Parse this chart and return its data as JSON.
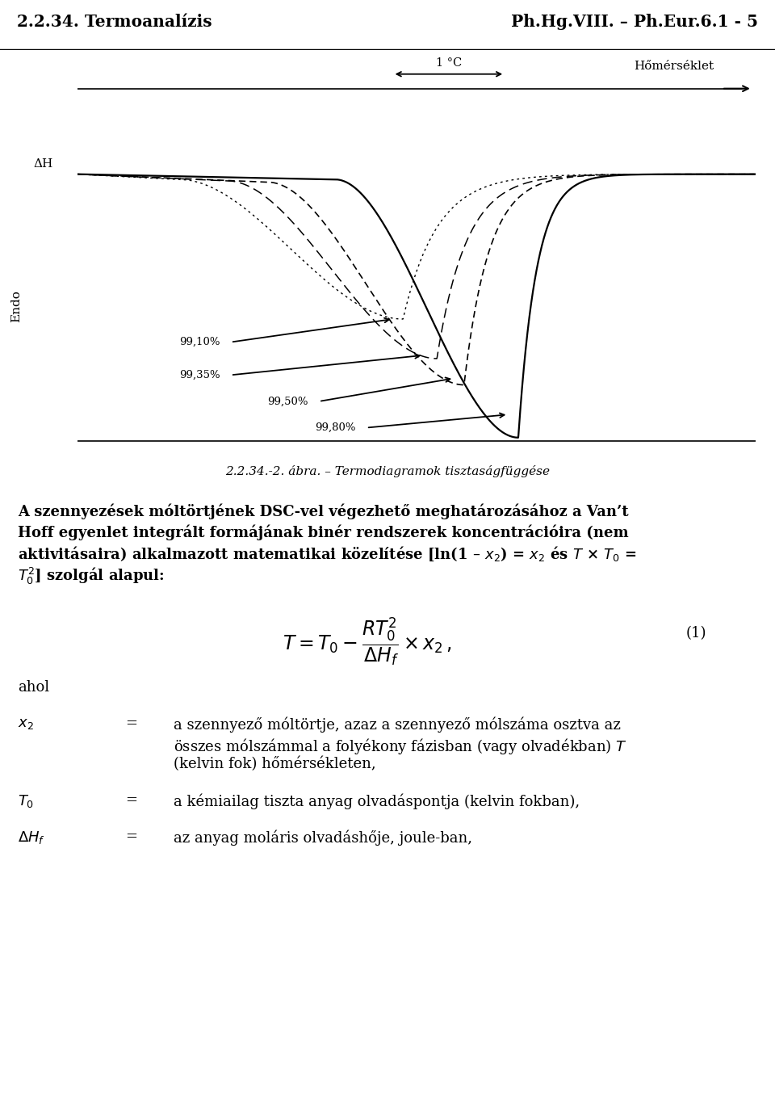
{
  "header_left": "2.2.34. Termoanalízis",
  "header_right": "Ph.Hg.VIII. – Ph.Eur.6.1 - 5",
  "fig_caption": "2.2.34.-2. ábra. – Termodiagramok tisztaságfüggése",
  "label_1C": "1 °C",
  "label_homerseklet": "Hőmérséklet",
  "label_endo": "Endo",
  "label_deltaH": "ΔH",
  "purity_labels": [
    "99,10%",
    "99,35%",
    "99,50%",
    "99,80%"
  ],
  "where_label": "ahol",
  "x2_def_line1": "a szennyező móltörtje, azaz a szennyező mólszáma osztva az",
  "x2_def_line2": "összes mólszámmal a folyékony fázisban (vagy olvadékban) T",
  "x2_def_line3": "(kelvin fok) hőmérsékleten,",
  "T0_def": "a kémiailag tiszta anyag olvadáspontja (kelvin fokban),",
  "deltaHf_def": "az anyag moláris olvadáshője, joule-ban,",
  "background_color": "#ffffff",
  "text_color": "#000000",
  "line_color": "#000000"
}
